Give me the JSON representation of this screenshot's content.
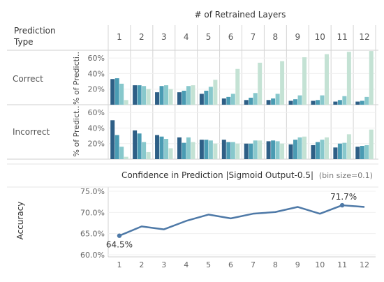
{
  "chart_data": [
    {
      "type": "bar",
      "title": "# of Retrained Layers",
      "row_header": "Prediction Type",
      "xlabel": "Confidence in Prediction |Sigmoid Output-0.5|",
      "xlabel_note": "(bin size=0.1)",
      "ylabel": "% of Predicti..",
      "ylabel_incorrect": "% of Predict..",
      "yticks": [
        "20%",
        "40%",
        "60%"
      ],
      "ylim": [
        0,
        0.7
      ],
      "bin_colors": [
        "#2e5f86",
        "#4a9bb3",
        "#88c8cc",
        "#c4e2d4"
      ],
      "columns": [
        "1",
        "2",
        "3",
        "4",
        "5",
        "6",
        "7",
        "8",
        "9",
        "10",
        "11",
        "12"
      ],
      "rows": [
        {
          "label": "Correct",
          "series": [
            [
              0.33,
              0.34,
              0.27,
              0.06
            ],
            [
              0.25,
              0.25,
              0.24,
              0.2
            ],
            [
              0.16,
              0.24,
              0.25,
              0.2
            ],
            [
              0.16,
              0.18,
              0.24,
              0.25
            ],
            [
              0.14,
              0.18,
              0.23,
              0.32
            ],
            [
              0.08,
              0.1,
              0.14,
              0.46
            ],
            [
              0.06,
              0.09,
              0.15,
              0.54
            ],
            [
              0.06,
              0.08,
              0.14,
              0.56
            ],
            [
              0.05,
              0.07,
              0.12,
              0.61
            ],
            [
              0.05,
              0.06,
              0.12,
              0.65
            ],
            [
              0.04,
              0.06,
              0.11,
              0.68
            ],
            [
              0.04,
              0.05,
              0.1,
              0.69
            ]
          ]
        },
        {
          "label": "Incorrect",
          "series": [
            [
              0.5,
              0.31,
              0.16,
              0.03
            ],
            [
              0.37,
              0.33,
              0.22,
              0.09
            ],
            [
              0.31,
              0.29,
              0.26,
              0.14
            ],
            [
              0.28,
              0.21,
              0.28,
              0.22
            ],
            [
              0.25,
              0.25,
              0.24,
              0.2
            ],
            [
              0.25,
              0.22,
              0.22,
              0.2
            ],
            [
              0.2,
              0.2,
              0.24,
              0.24
            ],
            [
              0.23,
              0.24,
              0.23,
              0.2
            ],
            [
              0.19,
              0.25,
              0.28,
              0.29
            ],
            [
              0.18,
              0.22,
              0.25,
              0.28
            ],
            [
              0.15,
              0.2,
              0.21,
              0.32
            ],
            [
              0.16,
              0.17,
              0.18,
              0.38
            ]
          ]
        }
      ]
    },
    {
      "type": "line",
      "ylabel": "Accuracy",
      "x": [
        "1",
        "2",
        "3",
        "4",
        "5",
        "6",
        "7",
        "8",
        "9",
        "10",
        "11",
        "12"
      ],
      "values": [
        64.5,
        66.7,
        66.0,
        68.0,
        69.5,
        68.6,
        69.7,
        70.1,
        71.3,
        69.7,
        71.7,
        71.3
      ],
      "yticks": [
        "60.0%",
        "65.0%",
        "70.0%",
        "75.0%"
      ],
      "ylim": [
        59.5,
        76
      ],
      "annotations": [
        {
          "index": 0,
          "text": "64.5%"
        },
        {
          "index": 10,
          "text": "71.7%"
        }
      ],
      "color": "#4e79a7"
    }
  ]
}
